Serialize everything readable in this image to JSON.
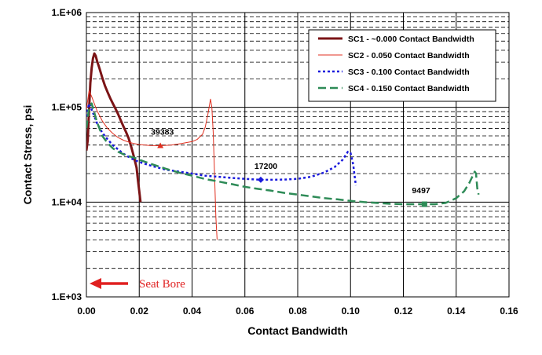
{
  "chart_data": {
    "type": "line",
    "xlabel": "Contact Bandwidth",
    "ylabel": "Contact Stress, psi",
    "xlim": [
      0,
      0.16
    ],
    "ylim": [
      1000,
      1000000
    ],
    "yscale": "log",
    "grid": true,
    "legend_position": "top-right",
    "x_ticks": [
      0,
      0.02,
      0.04,
      0.06,
      0.08,
      0.1,
      0.12,
      0.14,
      0.16
    ],
    "x_tick_labels": [
      "0.00",
      "0.02",
      "0.04",
      "0.06",
      "0.08",
      "0.10",
      "0.12",
      "0.14",
      "0.16"
    ],
    "y_ticks": [
      1000,
      10000,
      100000,
      1000000
    ],
    "y_tick_labels": [
      "1.E+03",
      "1.E+04",
      "1.E+05",
      "1.E+06"
    ],
    "series": [
      {
        "name": "SC1 - ~0.000 Contact Bandwidth",
        "color": "#7b1416",
        "style": "solid-thick",
        "points": [
          [
            0.0,
            35000
          ],
          [
            0.0005,
            45000
          ],
          [
            0.001,
            95000
          ],
          [
            0.0015,
            180000
          ],
          [
            0.002,
            260000
          ],
          [
            0.0025,
            330000
          ],
          [
            0.003,
            370000
          ],
          [
            0.0035,
            350000
          ],
          [
            0.004,
            310000
          ],
          [
            0.005,
            255000
          ],
          [
            0.006,
            205000
          ],
          [
            0.007,
            170000
          ],
          [
            0.008,
            145000
          ],
          [
            0.009,
            125000
          ],
          [
            0.01,
            110000
          ],
          [
            0.011,
            97000
          ],
          [
            0.012,
            85000
          ],
          [
            0.013,
            73000
          ],
          [
            0.014,
            63000
          ],
          [
            0.015,
            55000
          ],
          [
            0.016,
            47000
          ],
          [
            0.017,
            38000
          ],
          [
            0.018,
            30000
          ],
          [
            0.019,
            23000
          ],
          [
            0.0195,
            17000
          ],
          [
            0.02,
            13000
          ],
          [
            0.0205,
            10000
          ]
        ]
      },
      {
        "name": "SC2 - 0.050 Contact Bandwidth",
        "color": "#e03020",
        "style": "solid-thin",
        "points": [
          [
            0.0,
            95000
          ],
          [
            0.001,
            150000
          ],
          [
            0.002,
            130000
          ],
          [
            0.004,
            92000
          ],
          [
            0.006,
            72000
          ],
          [
            0.008,
            60000
          ],
          [
            0.01,
            53000
          ],
          [
            0.012,
            48000
          ],
          [
            0.014,
            45000
          ],
          [
            0.016,
            43000
          ],
          [
            0.018,
            41500
          ],
          [
            0.02,
            40500
          ],
          [
            0.024,
            39500
          ],
          [
            0.028,
            39383
          ],
          [
            0.032,
            40000
          ],
          [
            0.036,
            41500
          ],
          [
            0.04,
            43500
          ],
          [
            0.042,
            46000
          ],
          [
            0.044,
            52000
          ],
          [
            0.045,
            62000
          ],
          [
            0.046,
            85000
          ],
          [
            0.047,
            122000
          ],
          [
            0.0475,
            100000
          ],
          [
            0.048,
            55000
          ],
          [
            0.0485,
            20000
          ],
          [
            0.049,
            7000
          ],
          [
            0.0495,
            4000
          ]
        ]
      },
      {
        "name": "SC3 - 0.100 Contact Bandwidth",
        "color": "#1a1adc",
        "style": "dotted",
        "points": [
          [
            0.0,
            80000
          ],
          [
            0.001,
            110000
          ],
          [
            0.002,
            95000
          ],
          [
            0.004,
            68000
          ],
          [
            0.006,
            54000
          ],
          [
            0.008,
            46000
          ],
          [
            0.01,
            40000
          ],
          [
            0.012,
            36000
          ],
          [
            0.014,
            32500
          ],
          [
            0.016,
            30000
          ],
          [
            0.018,
            28000
          ],
          [
            0.02,
            26500
          ],
          [
            0.025,
            24000
          ],
          [
            0.03,
            22000
          ],
          [
            0.035,
            21000
          ],
          [
            0.04,
            20000
          ],
          [
            0.045,
            19000
          ],
          [
            0.05,
            18500
          ],
          [
            0.055,
            18000
          ],
          [
            0.06,
            17600
          ],
          [
            0.066,
            17200
          ],
          [
            0.07,
            17200
          ],
          [
            0.075,
            17300
          ],
          [
            0.08,
            17600
          ],
          [
            0.085,
            18500
          ],
          [
            0.09,
            20500
          ],
          [
            0.094,
            23500
          ],
          [
            0.097,
            28000
          ],
          [
            0.099,
            34000
          ],
          [
            0.1,
            33000
          ],
          [
            0.101,
            25000
          ],
          [
            0.102,
            15000
          ]
        ]
      },
      {
        "name": "SC4 - 0.150 Contact Bandwidth",
        "color": "#2e8b57",
        "style": "dashed",
        "points": [
          [
            0.0,
            60000
          ],
          [
            0.001,
            100000
          ],
          [
            0.002,
            110000
          ],
          [
            0.004,
            70000
          ],
          [
            0.006,
            50000
          ],
          [
            0.008,
            42000
          ],
          [
            0.01,
            37000
          ],
          [
            0.012,
            34000
          ],
          [
            0.014,
            32000
          ],
          [
            0.016,
            30500
          ],
          [
            0.018,
            29500
          ],
          [
            0.02,
            28000
          ],
          [
            0.025,
            25000
          ],
          [
            0.03,
            22500
          ],
          [
            0.035,
            20500
          ],
          [
            0.04,
            19000
          ],
          [
            0.045,
            17500
          ],
          [
            0.05,
            16500
          ],
          [
            0.055,
            15500
          ],
          [
            0.06,
            14500
          ],
          [
            0.065,
            13800
          ],
          [
            0.07,
            13200
          ],
          [
            0.075,
            12500
          ],
          [
            0.08,
            12000
          ],
          [
            0.085,
            11500
          ],
          [
            0.09,
            11000
          ],
          [
            0.095,
            10700
          ],
          [
            0.1,
            10300
          ],
          [
            0.105,
            10000
          ],
          [
            0.11,
            9800
          ],
          [
            0.115,
            9600
          ],
          [
            0.12,
            9500
          ],
          [
            0.125,
            9500
          ],
          [
            0.128,
            9497
          ],
          [
            0.132,
            9500
          ],
          [
            0.136,
            9800
          ],
          [
            0.14,
            11000
          ],
          [
            0.143,
            13000
          ],
          [
            0.145,
            16000
          ],
          [
            0.147,
            21000
          ],
          [
            0.1475,
            20000
          ],
          [
            0.148,
            14000
          ],
          [
            0.1485,
            12000
          ]
        ]
      }
    ],
    "markers": [
      {
        "series": 1,
        "shape": "triangle",
        "x": 0.028,
        "y": 39383,
        "label": "39383",
        "label_dx": -12,
        "label_dy": -14
      },
      {
        "series": 2,
        "shape": "diamond",
        "x": 0.066,
        "y": 17200,
        "label": "17200",
        "label_dx": -8,
        "label_dy": -14
      },
      {
        "series": 3,
        "shape": "square",
        "x": 0.128,
        "y": 9497,
        "label": "9497",
        "label_dx": -16,
        "label_dy": -14
      }
    ],
    "annotation": {
      "text": "Seat Bore",
      "color": "#e02020"
    }
  }
}
